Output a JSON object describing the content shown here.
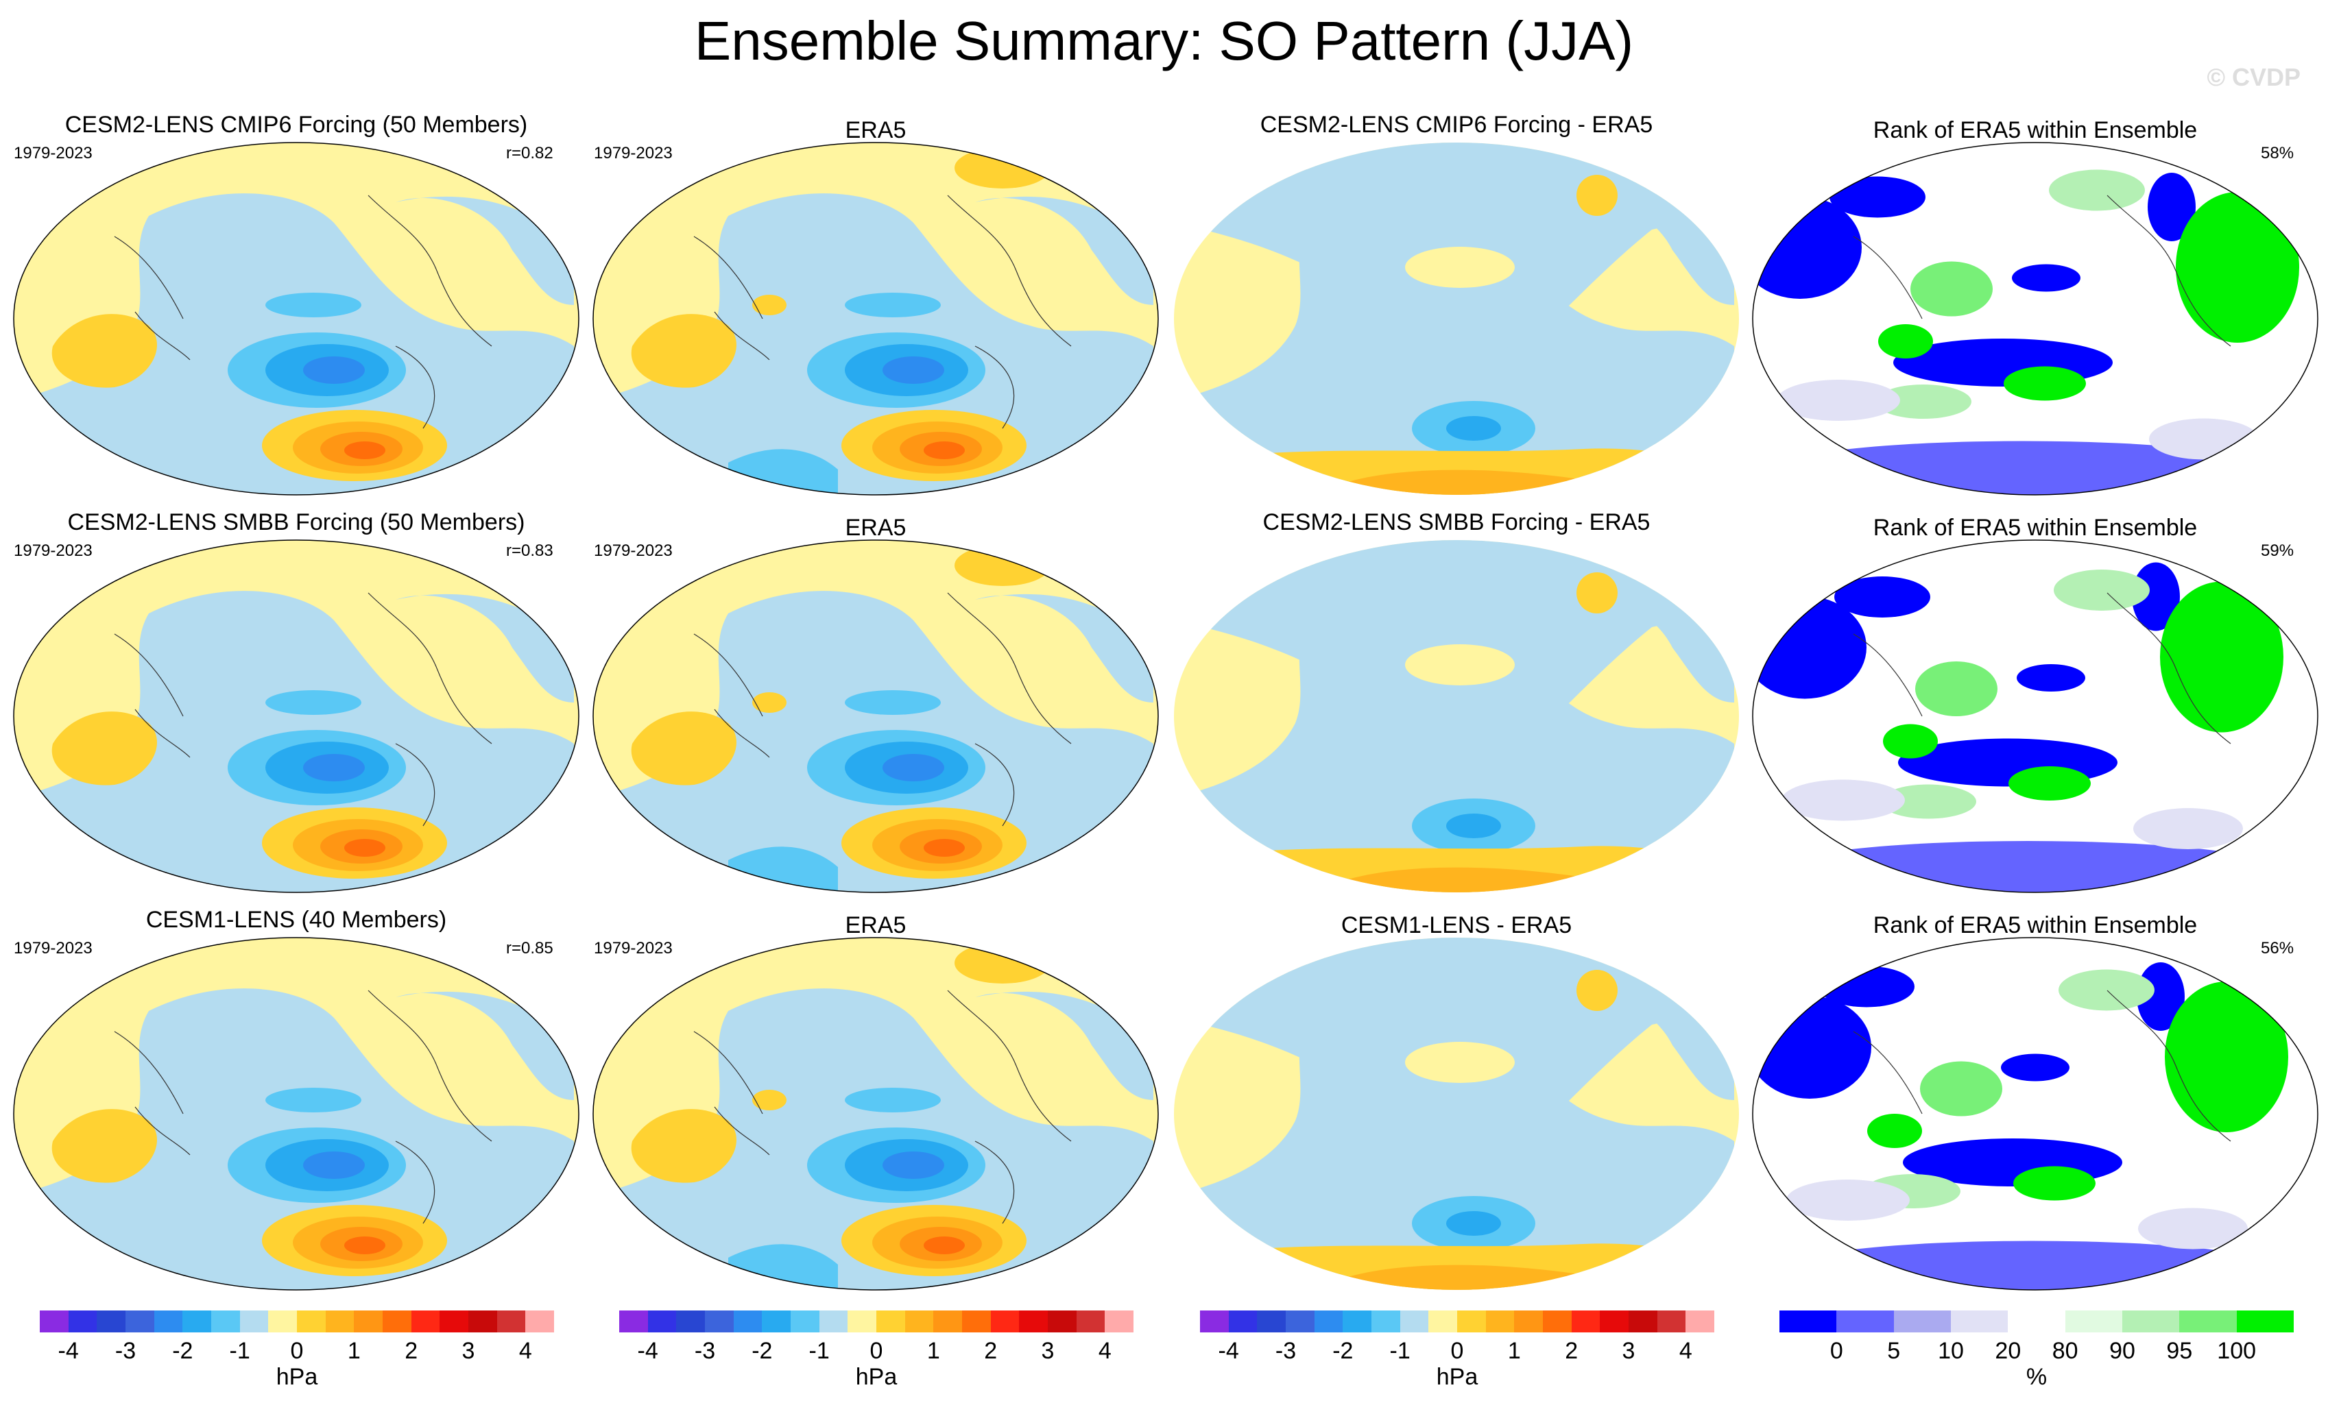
{
  "title": "Ensemble Summary: SO Pattern (JJA)",
  "watermark": "© CVDP",
  "rows": [
    {
      "model": {
        "title": "CESM2-LENS CMIP6 Forcing (50 Members)",
        "years": "1979-2023",
        "corr": "r=0.82"
      },
      "obs": {
        "title": "ERA5",
        "years": "1979-2023"
      },
      "diff": {
        "title": "CESM2-LENS CMIP6 Forcing - ERA5"
      },
      "rank": {
        "title": "Rank of ERA5 within Ensemble",
        "pct": "58%"
      }
    },
    {
      "model": {
        "title": "CESM2-LENS SMBB Forcing (50 Members)",
        "years": "1979-2023",
        "corr": "r=0.83"
      },
      "obs": {
        "title": "ERA5",
        "years": "1979-2023"
      },
      "diff": {
        "title": "CESM2-LENS SMBB Forcing - ERA5"
      },
      "rank": {
        "title": "Rank of ERA5 within Ensemble",
        "pct": "59%"
      }
    },
    {
      "model": {
        "title": "CESM1-LENS (40 Members)",
        "years": "1979-2023",
        "corr": "r=0.85"
      },
      "obs": {
        "title": "ERA5",
        "years": "1979-2023"
      },
      "diff": {
        "title": "CESM1-LENS - ERA5"
      },
      "rank": {
        "title": "Rank of ERA5 within Ensemble",
        "pct": "56%"
      }
    }
  ],
  "colorbars": {
    "slp": {
      "ticks": [
        "-4",
        "-3",
        "-2",
        "-1",
        "0",
        "1",
        "2",
        "3",
        "4"
      ],
      "unit": "hPa",
      "colors": [
        "#8a2be2",
        "#3232e6",
        "#2846d2",
        "#3c64dc",
        "#2d8cf0",
        "#28aaf0",
        "#5ac8f5",
        "#b4dcf0",
        "#fff5a0",
        "#ffd232",
        "#ffb41e",
        "#ff9614",
        "#ff6e0a",
        "#ff2814",
        "#e60a0a",
        "#c80a0a",
        "#d23232",
        "#ffaaaa"
      ]
    },
    "rank": {
      "ticks": [
        "0",
        "5",
        "10",
        "20",
        "80",
        "90",
        "95",
        "100"
      ],
      "unit": "%",
      "colors": [
        "#0000ff",
        "#6464ff",
        "#aaaaf0",
        "#e1e1f5",
        "#ffffff",
        "#e1fae1",
        "#b4f0b4",
        "#78f078",
        "#00f000"
      ]
    }
  }
}
